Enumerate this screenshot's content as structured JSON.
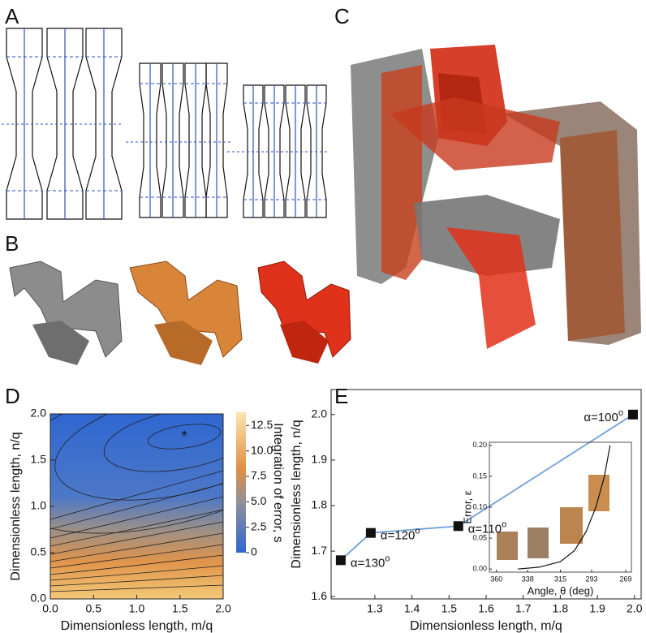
{
  "panel_labels": [
    "A",
    "B",
    "C",
    "D",
    "E"
  ],
  "chart_data": [
    {
      "type": "contour",
      "xlabel": "Dimensionless length, m/q",
      "ylabel": "Dimensionless length, n/q",
      "xlim": [
        0,
        2
      ],
      "ylim": [
        0,
        2
      ],
      "xticks": [
        {
          "value": 0,
          "label": "0.0"
        },
        0.5,
        {
          "value": 1,
          "label": "1.0"
        },
        1.5,
        {
          "value": 2,
          "label": "2.0"
        }
      ],
      "yticks": [
        {
          "value": 0,
          "label": "0.0"
        },
        0.5,
        {
          "value": 1,
          "label": "1.0"
        },
        1.5,
        {
          "value": 2,
          "label": "2.0"
        }
      ],
      "colorbar_label": "Integration of error, s",
      "colorbar_lim": [
        0,
        13.8
      ],
      "colorbar_ticks": [
        0,
        2.5,
        {
          "value": 5,
          "label": "5.0"
        },
        7.5,
        {
          "value": 10,
          "label": "10.0"
        },
        12.5
      ],
      "marker": {
        "x": 1.55,
        "y": 1.75,
        "color": "#ee3333"
      }
    },
    {
      "type": "line",
      "xlabel": "Dimensionless length, m/q",
      "ylabel": "Dimensionless length, n/q",
      "xlim": [
        1.182,
        2.018
      ],
      "ylim": [
        1.595,
        2.055
      ],
      "xticks": [
        1.3,
        1.4,
        1.5,
        1.6,
        1.7,
        1.8,
        1.9,
        {
          "value": 2,
          "label": "2.0"
        }
      ],
      "yticks": [
        1.6,
        1.7,
        1.8,
        1.9,
        {
          "value": 2,
          "label": "2.0"
        }
      ],
      "x": [
        1.208,
        1.289,
        1.525,
        1.996
      ],
      "values": [
        1.68,
        1.74,
        1.755,
        2.0
      ],
      "color": "#6f9fd8",
      "point_labels": [
        "α=130",
        "α=120",
        "α=110",
        "α=100"
      ],
      "point_label_sup": "o"
    },
    {
      "type": "line",
      "xlabel": "Angle, θ (deg)",
      "ylabel": "Error, ε",
      "xlim": [
        365,
        265
      ],
      "ylim": [
        -0.005,
        0.205
      ],
      "xticks": [
        360,
        338,
        315,
        293,
        269
      ],
      "yticks": [
        {
          "value": 0,
          "label": "0.00"
        },
        {
          "value": 0.05,
          "label": "0.05"
        },
        {
          "value": 0.1,
          "label": "0.10"
        },
        {
          "value": 0.15,
          "label": "0.15"
        },
        {
          "value": 0.2,
          "label": "0.20"
        }
      ],
      "x": [
        345,
        330,
        315,
        305,
        297,
        290,
        284,
        280
      ],
      "values": [
        0.0,
        0.003,
        0.012,
        0.03,
        0.06,
        0.1,
        0.15,
        0.2
      ],
      "color": "#111111"
    }
  ]
}
